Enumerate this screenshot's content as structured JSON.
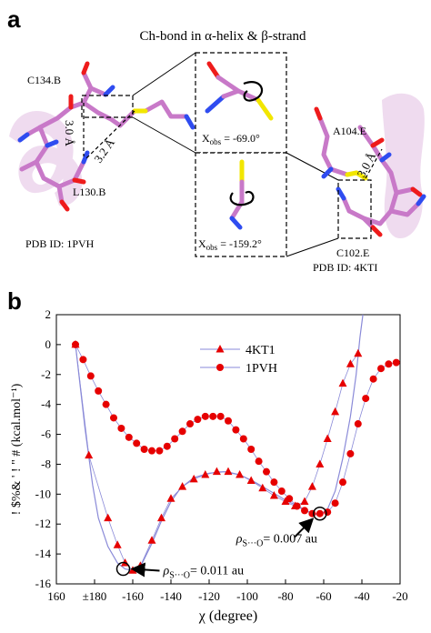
{
  "panel_a": {
    "letter": "a",
    "title": "Ch-bond in α-helix & β-strand",
    "left_structure": {
      "top_residue": "C134.B",
      "bottom_residue": "L130.B",
      "distance_1": "3.0 Å",
      "distance_2": "3.2 Å",
      "pdb_id": "PDB ID: 1PVH"
    },
    "right_structure": {
      "top_residue": "A104.E",
      "bottom_residue": "C102.E",
      "distance": "3.0 Å",
      "pdb_id": "PDB ID: 4KTI"
    },
    "inset_top": {
      "label_prefix": "X",
      "label_sub": "obs",
      "label_value": " = -69.0°"
    },
    "inset_bottom": {
      "label_prefix": "X",
      "label_sub": "obs",
      "label_value": " = -159.2°"
    },
    "colors": {
      "carbon": "#c879c8",
      "sulfur": "#f2e600",
      "nitrogen": "#2f4cf0",
      "oxygen": "#ee1b1b",
      "helix_ribbon": "#e9cfe9"
    }
  },
  "panel_b": {
    "letter": "b",
    "annotation_1": {
      "prefix": "ρ",
      "sub": "S···O",
      "value": "= 0.007 au"
    },
    "annotation_2": {
      "prefix": "ρ",
      "sub": "S···O",
      "value": "= 0.011 au"
    }
  },
  "chart_data": {
    "type": "line",
    "xlabel": "χ (degree)",
    "ylabel": "! $%& ' ! \" # (kcal.mol⁻¹)",
    "xlim": [
      160,
      -20
    ],
    "ylim": [
      -16,
      2
    ],
    "x_ticks": [
      "160",
      "±180",
      "-160",
      "-140",
      "-120",
      "-100",
      "-80",
      "-60",
      "-40",
      "-20"
    ],
    "y_ticks": [
      2,
      0,
      -2,
      -4,
      -6,
      -8,
      -10,
      -12,
      -14,
      -16
    ],
    "legend_position": "top-right",
    "line_color": "#8a8ad8",
    "marker_color": "#e60000",
    "series": [
      {
        "name": "4KT1",
        "marker": "triangle",
        "points": [
          [
            170,
            0.0
          ],
          [
            177,
            -7.4
          ],
          [
            -173,
            -11.6
          ],
          [
            -168,
            -13.4
          ],
          [
            -164,
            -14.6
          ],
          [
            -160,
            -15.1
          ],
          [
            -156,
            -14.8
          ],
          [
            -150,
            -13.1
          ],
          [
            -145,
            -11.6
          ],
          [
            -140,
            -10.3
          ],
          [
            -134,
            -9.5
          ],
          [
            -128,
            -9.0
          ],
          [
            -122,
            -8.7
          ],
          [
            -116,
            -8.5
          ],
          [
            -110,
            -8.5
          ],
          [
            -104,
            -8.7
          ],
          [
            -98,
            -9.1
          ],
          [
            -92,
            -9.6
          ],
          [
            -86,
            -10.1
          ],
          [
            -80,
            -10.5
          ],
          [
            -75,
            -10.8
          ],
          [
            -70,
            -10.5
          ],
          [
            -66,
            -9.5
          ],
          [
            -62,
            -8.0
          ],
          [
            -58,
            -6.3
          ],
          [
            -54,
            -4.5
          ],
          [
            -50,
            -2.6
          ],
          [
            -46,
            -1.3
          ],
          [
            -42,
            -0.6
          ]
        ]
      },
      {
        "name": "1PVH",
        "marker": "circle",
        "points": [
          [
            170,
            0.0
          ],
          [
            174,
            -1.0
          ],
          [
            178,
            -2.1
          ],
          [
            -178,
            -3.1
          ],
          [
            -174,
            -4.0
          ],
          [
            -170,
            -4.9
          ],
          [
            -166,
            -5.6
          ],
          [
            -162,
            -6.2
          ],
          [
            -158,
            -6.6
          ],
          [
            -154,
            -7.0
          ],
          [
            -150,
            -7.1
          ],
          [
            -146,
            -7.1
          ],
          [
            -142,
            -6.8
          ],
          [
            -138,
            -6.3
          ],
          [
            -134,
            -5.8
          ],
          [
            -130,
            -5.3
          ],
          [
            -126,
            -5.0
          ],
          [
            -122,
            -4.8
          ],
          [
            -118,
            -4.8
          ],
          [
            -114,
            -4.8
          ],
          [
            -110,
            -5.1
          ],
          [
            -106,
            -5.7
          ],
          [
            -102,
            -6.3
          ],
          [
            -98,
            -7.0
          ],
          [
            -94,
            -7.8
          ],
          [
            -90,
            -8.5
          ],
          [
            -86,
            -9.2
          ],
          [
            -82,
            -9.8
          ],
          [
            -78,
            -10.3
          ],
          [
            -74,
            -10.8
          ],
          [
            -70,
            -11.1
          ],
          [
            -66,
            -11.3
          ],
          [
            -62,
            -11.3
          ],
          [
            -58,
            -11.2
          ],
          [
            -54,
            -10.6
          ],
          [
            -50,
            -9.2
          ],
          [
            -46,
            -7.3
          ],
          [
            -42,
            -5.3
          ],
          [
            -38,
            -3.6
          ],
          [
            -34,
            -2.3
          ],
          [
            -30,
            -1.6
          ],
          [
            -26,
            -1.3
          ],
          [
            -22,
            -1.2
          ]
        ]
      }
    ],
    "fit_curve": [
      [
        170,
        0.0
      ],
      [
        175,
        -5.6
      ],
      [
        179,
        -9.4
      ],
      [
        -178,
        -11.6
      ],
      [
        -173,
        -13.5
      ],
      [
        -168,
        -14.6
      ],
      [
        -164,
        -15.0
      ],
      [
        -160,
        -15.1
      ],
      [
        -155,
        -14.6
      ],
      [
        -150,
        -13.3
      ],
      [
        -145,
        -11.8
      ],
      [
        -140,
        -10.5
      ],
      [
        -135,
        -9.6
      ],
      [
        -128,
        -8.9
      ],
      [
        -120,
        -8.6
      ],
      [
        -112,
        -8.5
      ],
      [
        -104,
        -8.7
      ],
      [
        -96,
        -9.2
      ],
      [
        -88,
        -9.8
      ],
      [
        -80,
        -10.4
      ],
      [
        -72,
        -10.9
      ],
      [
        -66,
        -11.3
      ],
      [
        -62,
        -11.4
      ],
      [
        -58,
        -11.0
      ],
      [
        -54,
        -9.8
      ],
      [
        -50,
        -7.6
      ],
      [
        -46,
        -4.8
      ],
      [
        -43,
        -2.0
      ],
      [
        -41,
        0.5
      ],
      [
        -39.5,
        2.0
      ]
    ]
  }
}
